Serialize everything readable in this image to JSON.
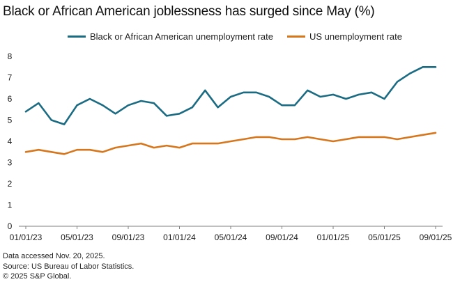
{
  "title": "Black or African American joblessness has surged since May (%)",
  "footnotes": {
    "line1": "Data accessed Nov. 20, 2025.",
    "line2": "Source: US Bureau of Labor Statistics.",
    "line3": "© 2025 S&P Global."
  },
  "colors": {
    "black_rate": "#1b6b83",
    "us_rate": "#d6761d",
    "axis": "#7f7f7f",
    "text": "#1a1a1a"
  },
  "chart_data": {
    "type": "line",
    "title": "Black or African American joblessness has surged since May (%)",
    "xlabel": "",
    "ylabel": "",
    "ylim": [
      0,
      8
    ],
    "yticks": [
      0,
      1,
      2,
      3,
      4,
      5,
      6,
      7,
      8
    ],
    "grid": false,
    "legend_position": "top",
    "x": [
      "01/01/23",
      "02/01/23",
      "03/01/23",
      "04/01/23",
      "05/01/23",
      "06/01/23",
      "07/01/23",
      "08/01/23",
      "09/01/23",
      "10/01/23",
      "11/01/23",
      "12/01/23",
      "01/01/24",
      "02/01/24",
      "03/01/24",
      "04/01/24",
      "05/01/24",
      "06/01/24",
      "07/01/24",
      "08/01/24",
      "09/01/24",
      "10/01/24",
      "11/01/24",
      "12/01/24",
      "01/01/25",
      "02/01/25",
      "03/01/25",
      "04/01/25",
      "05/01/25",
      "06/01/25",
      "07/01/25",
      "08/01/25",
      "09/01/25"
    ],
    "x_tick_labels": [
      {
        "index": 0,
        "label": "01/01/23"
      },
      {
        "index": 4,
        "label": "05/01/23"
      },
      {
        "index": 8,
        "label": "09/01/23"
      },
      {
        "index": 12,
        "label": "01/01/24"
      },
      {
        "index": 16,
        "label": "05/01/24"
      },
      {
        "index": 20,
        "label": "09/01/24"
      },
      {
        "index": 24,
        "label": "01/01/25"
      },
      {
        "index": 28,
        "label": "05/01/25"
      },
      {
        "index": 32,
        "label": "09/01/25"
      }
    ],
    "series": [
      {
        "name": "Black or African American unemployment rate",
        "color": "#1b6b83",
        "values": [
          5.4,
          5.8,
          5.0,
          4.8,
          5.7,
          6.0,
          5.7,
          5.3,
          5.7,
          5.9,
          5.8,
          5.2,
          5.3,
          5.6,
          6.4,
          5.6,
          6.1,
          6.3,
          6.3,
          6.1,
          5.7,
          5.7,
          6.4,
          6.1,
          6.2,
          6.0,
          6.2,
          6.3,
          6.0,
          6.8,
          7.2,
          7.5,
          7.5
        ]
      },
      {
        "name": "US unemployment rate",
        "color": "#d6761d",
        "values": [
          3.5,
          3.6,
          3.5,
          3.4,
          3.6,
          3.6,
          3.5,
          3.7,
          3.8,
          3.9,
          3.7,
          3.8,
          3.7,
          3.9,
          3.9,
          3.9,
          4.0,
          4.1,
          4.2,
          4.2,
          4.1,
          4.1,
          4.2,
          4.1,
          4.0,
          4.1,
          4.2,
          4.2,
          4.2,
          4.1,
          4.2,
          4.3,
          4.4
        ]
      }
    ]
  }
}
